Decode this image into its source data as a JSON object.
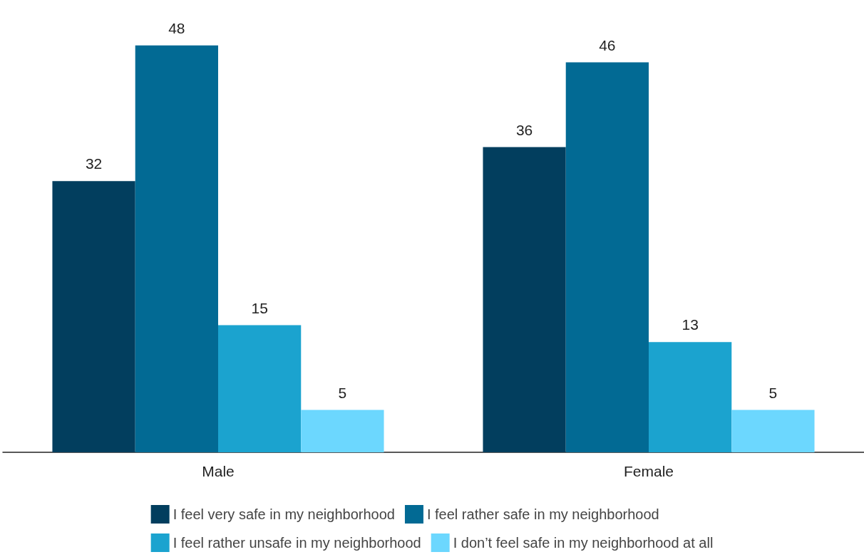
{
  "chart_data": {
    "type": "bar",
    "categories": [
      "Male",
      "Female"
    ],
    "series": [
      {
        "name": "I feel very safe in my neighborhood",
        "color": "#023e5e",
        "values": [
          32,
          36
        ]
      },
      {
        "name": "I feel rather safe in my neighborhood",
        "color": "#026a94",
        "values": [
          48,
          46
        ]
      },
      {
        "name": "I feel rather unsafe in my neighborhood",
        "color": "#1ba3cf",
        "values": [
          15,
          13
        ]
      },
      {
        "name": "I don’t feel safe in my neighborhood at all",
        "color": "#6cd7fe",
        "values": [
          5,
          5
        ]
      }
    ],
    "data_labels": true,
    "legend": "bottom",
    "grid": false
  }
}
